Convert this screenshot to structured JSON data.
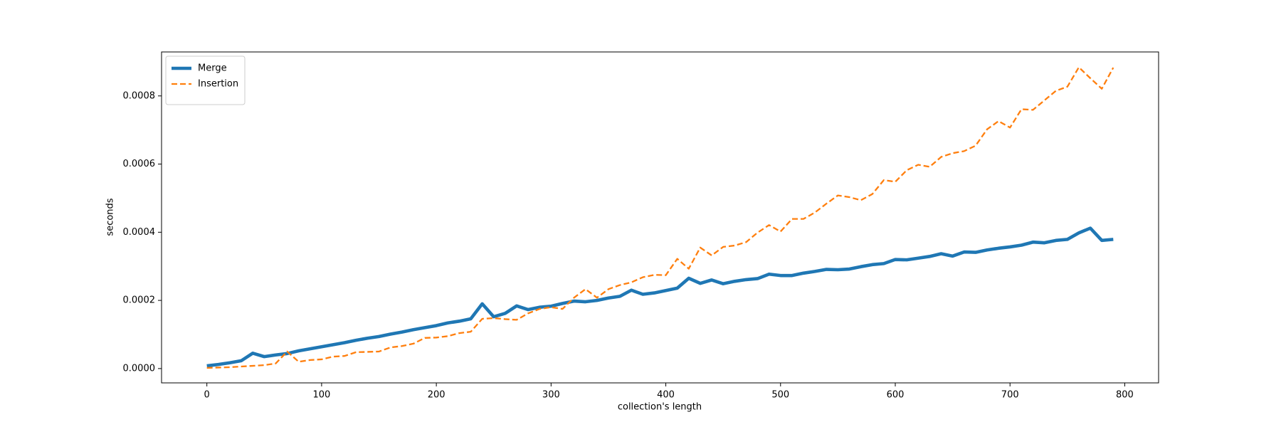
{
  "chart_data": {
    "type": "line",
    "xlabel": "collection's length",
    "ylabel": "seconds",
    "x": [
      0,
      10,
      20,
      30,
      40,
      50,
      60,
      70,
      80,
      90,
      100,
      110,
      120,
      130,
      140,
      150,
      160,
      170,
      180,
      190,
      200,
      210,
      220,
      230,
      240,
      250,
      260,
      270,
      280,
      290,
      300,
      310,
      320,
      330,
      340,
      350,
      360,
      370,
      380,
      390,
      400,
      410,
      420,
      430,
      440,
      450,
      460,
      470,
      480,
      490,
      500,
      510,
      520,
      530,
      540,
      550,
      560,
      570,
      580,
      590,
      600,
      610,
      620,
      630,
      640,
      650,
      660,
      670,
      680,
      690,
      700,
      710,
      720,
      730,
      740,
      750,
      760,
      770,
      780,
      790
    ],
    "series": [
      {
        "name": "Merge",
        "color": "#1f77b4",
        "linestyle": "solid",
        "values": [
          8e-06,
          1.2e-05,
          1.7e-05,
          2.3e-05,
          4.5e-05,
          3.5e-05,
          4e-05,
          4.4e-05,
          5.2e-05,
          5.8e-05,
          6.4e-05,
          7e-05,
          7.6e-05,
          8.3e-05,
          8.9e-05,
          9.4e-05,
          0.000101,
          0.000107,
          0.000114,
          0.00012,
          0.000126,
          0.000134,
          0.000139,
          0.000146,
          0.00019,
          0.000152,
          0.000162,
          0.000184,
          0.000173,
          0.00018,
          0.000183,
          0.000191,
          0.000198,
          0.000196,
          0.0002,
          0.000207,
          0.000212,
          0.00023,
          0.000218,
          0.000222,
          0.000229,
          0.000236,
          0.000265,
          0.00025,
          0.00026,
          0.000249,
          0.000256,
          0.000261,
          0.000264,
          0.000277,
          0.000273,
          0.000273,
          0.00028,
          0.000285,
          0.000291,
          0.00029,
          0.000292,
          0.000299,
          0.000305,
          0.000308,
          0.00032,
          0.000319,
          0.000324,
          0.000329,
          0.000337,
          0.00033,
          0.000342,
          0.000341,
          0.000348,
          0.000353,
          0.000357,
          0.000362,
          0.000371,
          0.000369,
          0.000376,
          0.000379,
          0.000398,
          0.000412,
          0.000376,
          0.000379
        ]
      },
      {
        "name": "Insertion",
        "color": "#ff7f0e",
        "linestyle": "dashed",
        "values": [
          2e-06,
          3e-06,
          4e-06,
          6e-06,
          8e-06,
          1e-05,
          1.5e-05,
          5e-05,
          2e-05,
          2.5e-05,
          2.7e-05,
          3.5e-05,
          3.7e-05,
          4.8e-05,
          4.9e-05,
          5e-05,
          6.2e-05,
          6.6e-05,
          7.3e-05,
          9e-05,
          9.1e-05,
          9.5e-05,
          0.000104,
          0.000108,
          0.000146,
          0.000148,
          0.000145,
          0.000143,
          0.000162,
          0.000175,
          0.00018,
          0.000175,
          0.000208,
          0.000233,
          0.000208,
          0.000233,
          0.000245,
          0.000253,
          0.000268,
          0.000275,
          0.000274,
          0.000322,
          0.000293,
          0.000355,
          0.000332,
          0.000357,
          0.000361,
          0.000371,
          0.000399,
          0.000421,
          0.000402,
          0.000439,
          0.000439,
          0.000458,
          0.000484,
          0.000508,
          0.000503,
          0.000494,
          0.000512,
          0.000553,
          0.000548,
          0.000582,
          0.000598,
          0.000592,
          0.000621,
          0.000632,
          0.000638,
          0.000654,
          0.000702,
          0.000726,
          0.000707,
          0.000761,
          0.000759,
          0.000787,
          0.000815,
          0.000827,
          0.000884,
          0.000852,
          0.000821,
          0.000883
        ]
      }
    ],
    "xlim": [
      -39.5,
      829.5
    ],
    "xticks": [
      0,
      100,
      200,
      300,
      400,
      500,
      600,
      700,
      800
    ],
    "ylim": [
      -4.2e-05,
      0.000929
    ],
    "yticks": [
      {
        "value": 0,
        "label": "0.0000"
      },
      0.0002,
      0.0004,
      0.0006,
      0.0008
    ],
    "grid": false,
    "legend": "upper left"
  }
}
